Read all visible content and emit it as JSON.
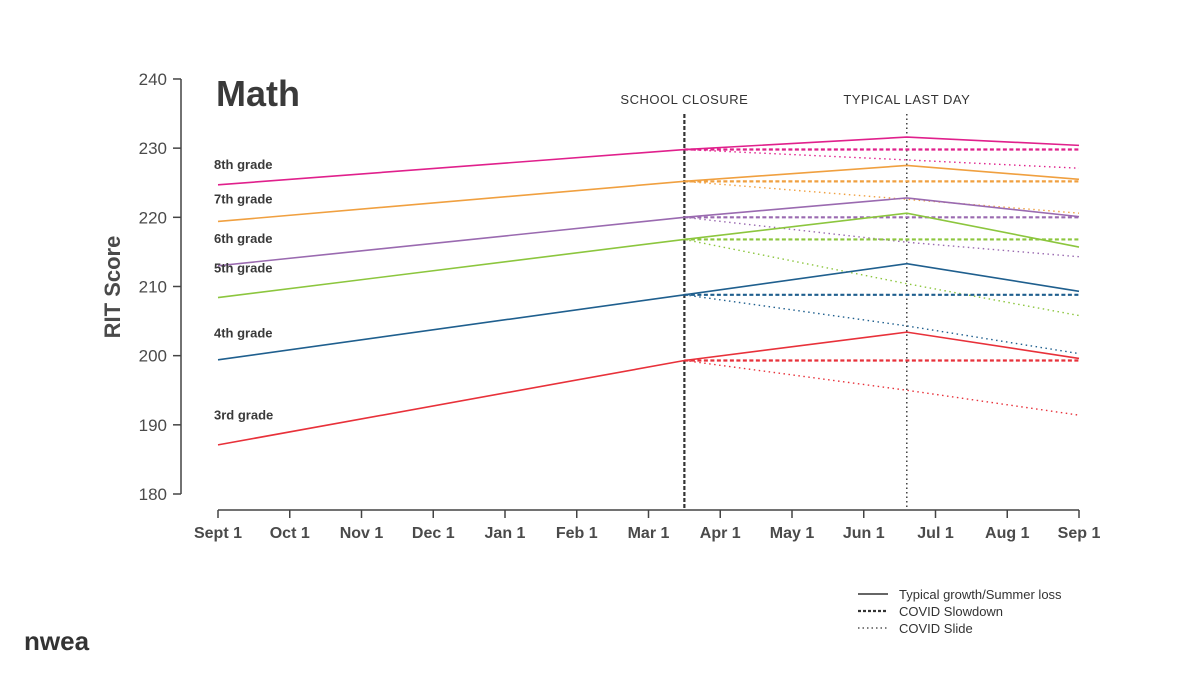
{
  "brand": {
    "logo_text": "nwea"
  },
  "chart_data": {
    "type": "line",
    "title": "Math",
    "ylabel": "RIT Score",
    "xlabel": "",
    "ylim": [
      180,
      240
    ],
    "yticks": [
      180,
      190,
      200,
      210,
      220,
      230,
      240
    ],
    "xticks": [
      "Sept 1",
      "Oct 1",
      "Nov 1",
      "Dec 1",
      "Jan 1",
      "Feb 1",
      "Mar 1",
      "Apr 1",
      "May 1",
      "Jun 1",
      "Jul 1",
      "Aug 1",
      "Sep 1"
    ],
    "annotations": [
      {
        "label": "SCHOOL CLOSURE",
        "x": 6.5,
        "style": "dashed"
      },
      {
        "label": "TYPICAL LAST DAY",
        "x": 9.6,
        "style": "dotted"
      }
    ],
    "legend": {
      "placement": "bottom-right",
      "entries": [
        {
          "label": "Typical growth/Summer loss",
          "style": "solid"
        },
        {
          "label": "COVID Slowdown",
          "style": "dashed"
        },
        {
          "label": "COVID Slide",
          "style": "dotted"
        }
      ]
    },
    "series": [
      {
        "name": "8th grade",
        "color": "#e0208c",
        "start": 224.7,
        "closure": 229.8,
        "peak": 231.6,
        "end": 230.4,
        "slowdown": 229.8,
        "slide_peak": 228.3,
        "slide_end": 227.1,
        "label_value": 227
      },
      {
        "name": "7th grade",
        "color": "#f0a040",
        "start": 219.4,
        "closure": 225.2,
        "peak": 227.5,
        "end": 225.5,
        "slowdown": 225.2,
        "slide_peak": 222.6,
        "slide_end": 220.6,
        "label_value": 222
      },
      {
        "name": "6th grade",
        "color": "#9a6ab0",
        "start": 213.0,
        "closure": 220.0,
        "peak": 222.8,
        "end": 220.1,
        "slowdown": 220.0,
        "slide_peak": 216.4,
        "slide_end": 214.3,
        "label_value": 216.3
      },
      {
        "name": "5th grade",
        "color": "#8cc63e",
        "start": 208.4,
        "closure": 216.8,
        "peak": 220.6,
        "end": 215.7,
        "slowdown": 216.8,
        "slide_peak": 210.4,
        "slide_end": 205.8,
        "label_value": 212
      },
      {
        "name": "4th grade",
        "color": "#1f5f8e",
        "start": 199.4,
        "closure": 208.8,
        "peak": 213.3,
        "end": 209.3,
        "slowdown": 208.8,
        "slide_peak": 204.3,
        "slide_end": 200.3,
        "label_value": 202.6
      },
      {
        "name": "3rd grade",
        "color": "#e8313a",
        "start": 187.1,
        "closure": 199.3,
        "peak": 203.4,
        "end": 199.6,
        "slowdown": 199.3,
        "slide_peak": 195.0,
        "slide_end": 191.4,
        "label_value": 190.8
      }
    ]
  }
}
